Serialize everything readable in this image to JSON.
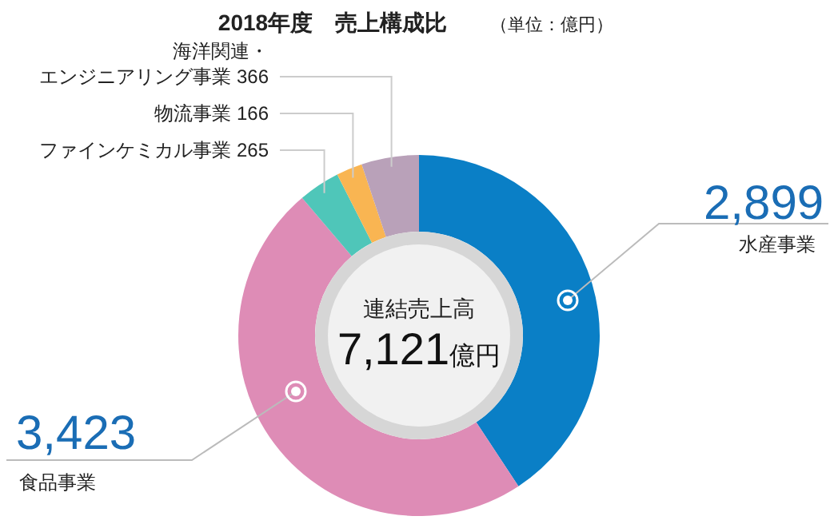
{
  "chart_data": {
    "type": "donut",
    "title": "2018年度　売上構成比",
    "subtitle": "（単位：億円）",
    "categories": [
      "水産事業",
      "食品事業",
      "ファインケミカル事業",
      "物流事業",
      "海洋関連・エンジニアリング事業"
    ],
    "values": [
      2899,
      3423,
      265,
      166,
      366
    ],
    "value_labels": [
      "2,899",
      "3,423",
      "265",
      "166",
      "366"
    ],
    "colors": [
      "#0a7fc6",
      "#de8cb6",
      "#4fc6b9",
      "#f9b552",
      "#b9a1b9"
    ],
    "annotations": [
      "連結売上高",
      "7,121億円"
    ]
  }
}
